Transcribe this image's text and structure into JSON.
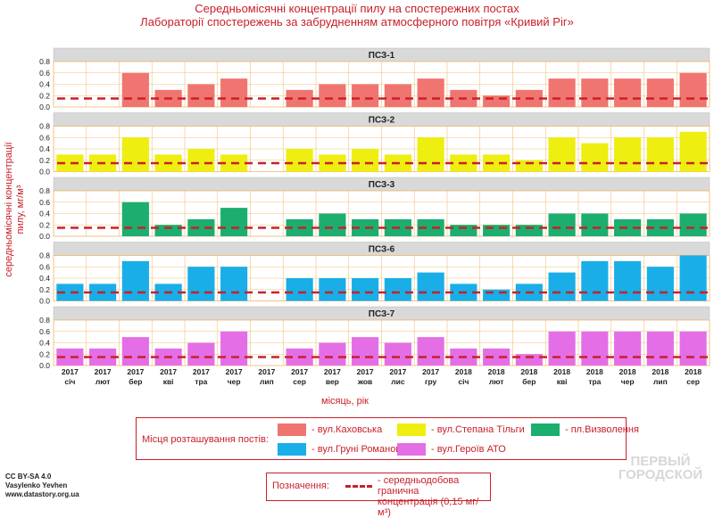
{
  "title_line1": "Середньомісячні концентрації пилу на спостережних постах",
  "title_line2": "Лабораторії спостережень за забрудненням атмосферного повітря «Кривий Ріг»",
  "chart_data": {
    "type": "bar",
    "title": "Середньомісячні концентрації пилу на спостережних постах Лабораторії спостережень за забрудненням атмосферного повітря «Кривий Ріг»",
    "ylabel_line1": "середньомісячні концентрації",
    "ylabel_line2": "пилу, мг/м³",
    "xlabel": "місяць, рік",
    "ylim": [
      0,
      0.8
    ],
    "yticks": [
      "0.0",
      "0.2",
      "0.4",
      "0.6",
      "0.8"
    ],
    "threshold": 0.15,
    "categories": [
      {
        "year": "2017",
        "month": "січ"
      },
      {
        "year": "2017",
        "month": "лют"
      },
      {
        "year": "2017",
        "month": "бер"
      },
      {
        "year": "2017",
        "month": "кві"
      },
      {
        "year": "2017",
        "month": "тра"
      },
      {
        "year": "2017",
        "month": "чер"
      },
      {
        "year": "2017",
        "month": "лип"
      },
      {
        "year": "2017",
        "month": "сер"
      },
      {
        "year": "2017",
        "month": "вер"
      },
      {
        "year": "2017",
        "month": "жов"
      },
      {
        "year": "2017",
        "month": "лис"
      },
      {
        "year": "2017",
        "month": "гру"
      },
      {
        "year": "2018",
        "month": "січ"
      },
      {
        "year": "2018",
        "month": "лют"
      },
      {
        "year": "2018",
        "month": "бер"
      },
      {
        "year": "2018",
        "month": "кві"
      },
      {
        "year": "2018",
        "month": "тра"
      },
      {
        "year": "2018",
        "month": "чер"
      },
      {
        "year": "2018",
        "month": "лип"
      },
      {
        "year": "2018",
        "month": "сер"
      }
    ],
    "series": [
      {
        "name": "ПСЗ-1",
        "location": "вул.Каховська",
        "color": "#f07470",
        "values": [
          null,
          null,
          0.6,
          0.3,
          0.4,
          0.5,
          null,
          0.3,
          0.4,
          0.4,
          0.4,
          0.5,
          0.3,
          0.2,
          0.3,
          0.5,
          0.5,
          0.5,
          0.5,
          0.6
        ]
      },
      {
        "name": "ПСЗ-2",
        "location": "вул.Степана Тільги",
        "color": "#eeee10",
        "values": [
          0.3,
          0.3,
          0.6,
          0.3,
          0.4,
          0.3,
          null,
          0.4,
          0.3,
          0.4,
          0.3,
          0.6,
          0.3,
          0.3,
          0.2,
          0.6,
          0.5,
          0.6,
          0.6,
          0.7
        ]
      },
      {
        "name": "ПСЗ-3",
        "location": "пл.Визволення",
        "color": "#1bae6e",
        "values": [
          null,
          null,
          0.6,
          0.2,
          0.3,
          0.5,
          null,
          0.3,
          0.4,
          0.3,
          0.3,
          0.3,
          0.2,
          0.2,
          0.2,
          0.4,
          0.4,
          0.3,
          0.3,
          0.4
        ]
      },
      {
        "name": "ПСЗ-6",
        "location": "вул.Груні Романової",
        "color": "#19aee8",
        "values": [
          0.3,
          0.3,
          0.7,
          0.3,
          0.6,
          0.6,
          null,
          0.4,
          0.4,
          0.4,
          0.4,
          0.5,
          0.3,
          0.2,
          0.3,
          0.5,
          0.7,
          0.7,
          0.6,
          0.8
        ]
      },
      {
        "name": "ПСЗ-7",
        "location": "вул.Героїв АТО",
        "color": "#e46ee6",
        "values": [
          0.3,
          0.3,
          0.5,
          0.3,
          0.4,
          0.6,
          null,
          0.3,
          0.4,
          0.5,
          0.4,
          0.5,
          0.3,
          0.3,
          0.2,
          0.6,
          0.6,
          0.6,
          0.6,
          0.6
        ]
      }
    ]
  },
  "legend": {
    "caption": "Місця розташування постів:",
    "items": [
      {
        "label": "- вул.Каховська",
        "color": "#f07470"
      },
      {
        "label": "- вул.Степана Тільги",
        "color": "#eeee10"
      },
      {
        "label": "- пл.Визволення",
        "color": "#1bae6e"
      },
      {
        "label": "- вул.Груні Романової",
        "color": "#19aee8"
      },
      {
        "label": "- вул.Героїв АТО",
        "color": "#e46ee6"
      }
    ]
  },
  "note": {
    "caption": "Позначення:",
    "line1": "- середньодобова гранична",
    "line2": "концентрація (0,15 мг/м³)"
  },
  "credits": {
    "line1": "CC BY-SA 4.0",
    "line2": "Vasylenko Yevhen",
    "line3": "www.datastory.org.ua"
  },
  "watermark": {
    "line1": "ПЕРВЫЙ",
    "line2": "ГОРОДСКОЙ"
  }
}
